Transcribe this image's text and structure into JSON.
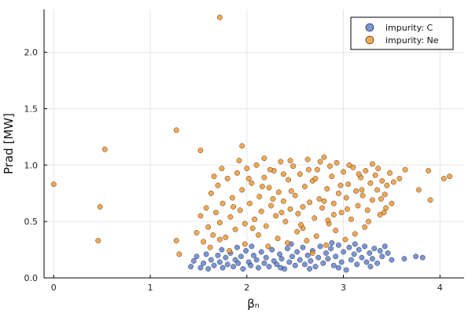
{
  "chart_data": {
    "type": "scatter",
    "title": "",
    "xlabel": "βₙ",
    "ylabel": "Prad [MW]",
    "xlim": [
      -0.1,
      4.25
    ],
    "ylim": [
      0.0,
      2.38
    ],
    "xticks": [
      0,
      1,
      2,
      3,
      4
    ],
    "yticks": [
      0.0,
      0.5,
      1.0,
      1.5,
      2.0
    ],
    "xtick_labels": [
      "0",
      "1",
      "2",
      "3",
      "4"
    ],
    "ytick_labels": [
      "0.0",
      "0.5",
      "1.0",
      "1.5",
      "2.0"
    ],
    "grid": true,
    "legend_position": "top-right",
    "series": [
      {
        "name": "impurity: C",
        "color": "#4169c8",
        "points": [
          [
            1.42,
            0.1
          ],
          [
            1.45,
            0.15
          ],
          [
            1.48,
            0.19
          ],
          [
            1.52,
            0.09
          ],
          [
            1.55,
            0.13
          ],
          [
            1.58,
            0.21
          ],
          [
            1.6,
            0.08
          ],
          [
            1.63,
            0.16
          ],
          [
            1.66,
            0.11
          ],
          [
            1.7,
            0.2
          ],
          [
            1.72,
            0.14
          ],
          [
            1.75,
            0.09
          ],
          [
            1.78,
            0.18
          ],
          [
            1.8,
            0.12
          ],
          [
            1.83,
            0.22
          ],
          [
            1.86,
            0.1
          ],
          [
            1.88,
            0.16
          ],
          [
            1.91,
            0.13
          ],
          [
            1.94,
            0.19
          ],
          [
            1.96,
            0.08
          ],
          [
            1.99,
            0.24
          ],
          [
            2.02,
            0.14
          ],
          [
            2.04,
            0.11
          ],
          [
            2.07,
            0.2
          ],
          [
            2.1,
            0.16
          ],
          [
            2.12,
            0.09
          ],
          [
            2.15,
            0.23
          ],
          [
            2.18,
            0.13
          ],
          [
            2.2,
            0.18
          ],
          [
            2.23,
            0.1
          ],
          [
            2.26,
            0.25
          ],
          [
            2.28,
            0.15
          ],
          [
            2.31,
            0.12
          ],
          [
            2.34,
            0.21
          ],
          [
            2.36,
            0.17
          ],
          [
            2.39,
            0.08
          ],
          [
            2.42,
            0.26
          ],
          [
            2.44,
            0.14
          ],
          [
            2.47,
            0.19
          ],
          [
            2.5,
            0.11
          ],
          [
            2.52,
            0.23
          ],
          [
            2.55,
            0.16
          ],
          [
            2.58,
            0.27
          ],
          [
            2.6,
            0.12
          ],
          [
            2.63,
            0.2
          ],
          [
            2.66,
            0.15
          ],
          [
            2.68,
            0.24
          ],
          [
            2.71,
            0.1
          ],
          [
            2.74,
            0.18
          ],
          [
            2.76,
            0.28
          ],
          [
            2.79,
            0.13
          ],
          [
            2.82,
            0.22
          ],
          [
            2.84,
            0.17
          ],
          [
            2.87,
            0.26
          ],
          [
            2.9,
            0.11
          ],
          [
            2.92,
            0.19
          ],
          [
            2.95,
            0.29
          ],
          [
            2.98,
            0.14
          ],
          [
            3.0,
            0.23
          ],
          [
            3.03,
            0.07
          ],
          [
            3.06,
            0.27
          ],
          [
            3.08,
            0.16
          ],
          [
            3.11,
            0.21
          ],
          [
            3.14,
            0.12
          ],
          [
            3.16,
            0.25
          ],
          [
            3.19,
            0.18
          ],
          [
            3.22,
            0.28
          ],
          [
            3.24,
            0.14
          ],
          [
            3.27,
            0.22
          ],
          [
            3.3,
            0.17
          ],
          [
            3.32,
            0.26
          ],
          [
            3.35,
            0.13
          ],
          [
            3.38,
            0.24
          ],
          [
            3.4,
            0.19
          ],
          [
            3.43,
            0.28
          ],
          [
            3.46,
            0.22
          ],
          [
            3.5,
            0.16
          ],
          [
            3.63,
            0.17
          ],
          [
            3.75,
            0.19
          ],
          [
            3.82,
            0.18
          ],
          [
            2.05,
            0.28
          ],
          [
            2.35,
            0.09
          ],
          [
            2.65,
            0.08
          ],
          [
            2.95,
            0.09
          ],
          [
            1.74,
            0.25
          ],
          [
            2.46,
            0.3
          ],
          [
            2.88,
            0.31
          ],
          [
            3.12,
            0.3
          ],
          [
            3.28,
            0.1
          ],
          [
            1.9,
            0.27
          ]
        ]
      },
      {
        "name": "impurity: Ne",
        "color": "#f39a33",
        "points": [
          [
            0.0,
            0.83
          ],
          [
            0.46,
            0.33
          ],
          [
            0.48,
            0.63
          ],
          [
            0.53,
            1.14
          ],
          [
            1.27,
            1.31
          ],
          [
            1.27,
            0.33
          ],
          [
            1.3,
            0.21
          ],
          [
            1.52,
            1.13
          ],
          [
            1.72,
            2.31
          ],
          [
            1.95,
            1.17
          ],
          [
            4.04,
            0.88
          ],
          [
            4.1,
            0.9
          ],
          [
            3.9,
            0.69
          ],
          [
            3.88,
            0.95
          ],
          [
            3.78,
            0.78
          ],
          [
            3.58,
            0.88
          ],
          [
            3.64,
            0.96
          ],
          [
            1.48,
            0.4
          ],
          [
            1.52,
            0.55
          ],
          [
            1.55,
            0.32
          ],
          [
            1.58,
            0.62
          ],
          [
            1.6,
            0.45
          ],
          [
            1.63,
            0.75
          ],
          [
            1.65,
            0.38
          ],
          [
            1.68,
            0.58
          ],
          [
            1.7,
            0.82
          ],
          [
            1.72,
            0.49
          ],
          [
            1.75,
            0.66
          ],
          [
            1.78,
            0.36
          ],
          [
            1.8,
            0.88
          ],
          [
            1.83,
            0.54
          ],
          [
            1.85,
            0.71
          ],
          [
            1.88,
            0.43
          ],
          [
            1.9,
            0.93
          ],
          [
            1.93,
            0.6
          ],
          [
            1.95,
            0.78
          ],
          [
            1.98,
            0.48
          ],
          [
            2.0,
            0.97
          ],
          [
            2.03,
            0.66
          ],
          [
            2.05,
            0.84
          ],
          [
            2.08,
            0.52
          ],
          [
            2.1,
            1.0
          ],
          [
            2.13,
            0.72
          ],
          [
            2.15,
            0.59
          ],
          [
            2.18,
            0.89
          ],
          [
            2.2,
            0.46
          ],
          [
            2.23,
            0.8
          ],
          [
            2.25,
            0.64
          ],
          [
            2.28,
            0.95
          ],
          [
            2.3,
            0.55
          ],
          [
            2.33,
            0.76
          ],
          [
            2.35,
            1.03
          ],
          [
            2.38,
            0.68
          ],
          [
            2.4,
            0.5
          ],
          [
            2.43,
            0.87
          ],
          [
            2.45,
            0.61
          ],
          [
            2.48,
            0.99
          ],
          [
            2.5,
            0.73
          ],
          [
            2.53,
            0.57
          ],
          [
            2.55,
            0.92
          ],
          [
            2.58,
            0.44
          ],
          [
            2.6,
            0.81
          ],
          [
            2.63,
            1.05
          ],
          [
            2.65,
            0.67
          ],
          [
            2.68,
            0.86
          ],
          [
            2.7,
            0.53
          ],
          [
            2.73,
            0.96
          ],
          [
            2.75,
            0.7
          ],
          [
            2.78,
            0.62
          ],
          [
            2.8,
            1.07
          ],
          [
            2.83,
            0.79
          ],
          [
            2.85,
            0.48
          ],
          [
            2.88,
            0.9
          ],
          [
            2.9,
            0.66
          ],
          [
            2.93,
            1.02
          ],
          [
            2.95,
            0.75
          ],
          [
            2.98,
            0.58
          ],
          [
            3.0,
            0.94
          ],
          [
            3.03,
            0.71
          ],
          [
            3.05,
            0.83
          ],
          [
            3.08,
            0.52
          ],
          [
            3.1,
            0.98
          ],
          [
            3.13,
            0.77
          ],
          [
            3.15,
            0.64
          ],
          [
            3.18,
            0.89
          ],
          [
            3.2,
            0.73
          ],
          [
            3.23,
            0.95
          ],
          [
            3.25,
            0.6
          ],
          [
            3.28,
            0.84
          ],
          [
            3.3,
            0.69
          ],
          [
            3.33,
            0.91
          ],
          [
            3.35,
            0.78
          ],
          [
            3.38,
            0.56
          ],
          [
            3.4,
            0.86
          ],
          [
            3.43,
            0.74
          ],
          [
            3.45,
            0.82
          ],
          [
            3.48,
            0.93
          ],
          [
            3.5,
            0.66
          ],
          [
            2.12,
            0.38
          ],
          [
            2.32,
            0.35
          ],
          [
            2.52,
            0.41
          ],
          [
            2.72,
            0.37
          ],
          [
            2.92,
            0.42
          ],
          [
            3.12,
            0.39
          ],
          [
            1.98,
            0.3
          ],
          [
            2.22,
            0.28
          ],
          [
            2.42,
            0.31
          ],
          [
            2.62,
            0.33
          ],
          [
            2.82,
            0.29
          ],
          [
            3.02,
            0.34
          ],
          [
            1.62,
            0.27
          ],
          [
            1.82,
            0.24
          ],
          [
            2.68,
            0.22
          ],
          [
            3.22,
            0.45
          ],
          [
            3.42,
            0.58
          ],
          [
            3.52,
            0.85
          ],
          [
            1.92,
            1.04
          ],
          [
            2.18,
            1.06
          ],
          [
            2.45,
            1.04
          ],
          [
            2.76,
            1.03
          ],
          [
            3.06,
            1.0
          ],
          [
            3.3,
            1.01
          ],
          [
            1.74,
            0.97
          ],
          [
            2.02,
            0.88
          ],
          [
            2.38,
            0.92
          ],
          [
            2.64,
            0.96
          ],
          [
            2.86,
            0.99
          ],
          [
            3.16,
            0.92
          ],
          [
            3.36,
            0.97
          ],
          [
            1.66,
            0.9
          ],
          [
            2.56,
            0.47
          ],
          [
            2.84,
            0.51
          ],
          [
            3.26,
            0.5
          ],
          [
            1.72,
            0.34
          ],
          [
            2.06,
            0.44
          ],
          [
            2.27,
            0.7
          ],
          [
            2.46,
            0.77
          ],
          [
            2.71,
            0.88
          ],
          [
            2.97,
            0.82
          ],
          [
            3.19,
            0.78
          ],
          [
            3.39,
            0.7
          ],
          [
            1.86,
            0.63
          ],
          [
            2.36,
            0.58
          ],
          [
            2.58,
            0.63
          ],
          [
            2.8,
            0.68
          ],
          [
            3.04,
            0.61
          ],
          [
            3.44,
            0.62
          ],
          [
            2.16,
            0.81
          ],
          [
            2.9,
            0.56
          ],
          [
            2.24,
            0.96
          ]
        ]
      }
    ]
  }
}
